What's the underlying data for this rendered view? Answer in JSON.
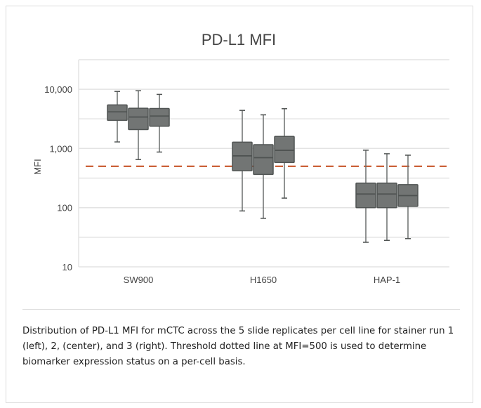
{
  "chart_data": {
    "type": "box",
    "title": "PD-L1 MFI",
    "xlabel": "",
    "ylabel": "MFI",
    "yscale": "log",
    "ylim": [
      10,
      31623
    ],
    "yticks": [
      10,
      100,
      1000,
      10000
    ],
    "ytick_labels": [
      "10",
      "100",
      "1,000",
      "10,000"
    ],
    "categories": [
      "SW900",
      "H1650",
      "HAP-1"
    ],
    "series": [
      {
        "name": "Stainer run 1",
        "boxes": [
          {
            "whislo": 1290,
            "q1": 2990,
            "med": 4160,
            "q3": 5450,
            "whishi": 9200
          },
          {
            "whislo": 88,
            "q1": 420,
            "med": 750,
            "q3": 1280,
            "whishi": 4400
          },
          {
            "whislo": 26,
            "q1": 100,
            "med": 170,
            "q3": 260,
            "whishi": 935
          }
        ]
      },
      {
        "name": "Stainer run 2",
        "boxes": [
          {
            "whislo": 650,
            "q1": 2090,
            "med": 3400,
            "q3": 4780,
            "whishi": 9450
          },
          {
            "whislo": 66,
            "q1": 365,
            "med": 700,
            "q3": 1160,
            "whishi": 3700
          },
          {
            "whislo": 28,
            "q1": 100,
            "med": 170,
            "q3": 260,
            "whishi": 815
          }
        ]
      },
      {
        "name": "Stainer run 3",
        "boxes": [
          {
            "whislo": 870,
            "q1": 2380,
            "med": 3530,
            "q3": 4740,
            "whishi": 8200
          },
          {
            "whislo": 145,
            "q1": 580,
            "med": 930,
            "q3": 1600,
            "whishi": 4700
          },
          {
            "whislo": 30,
            "q1": 105,
            "med": 160,
            "q3": 245,
            "whishi": 770
          }
        ]
      }
    ],
    "threshold": {
      "value": 500,
      "style": "dashed"
    },
    "grid": true,
    "colors": {
      "box": "#727574",
      "box_edge": "#4f5352",
      "threshold": "#c8562a",
      "grid": "#e3e3e3"
    }
  },
  "caption": "Distribution of PD-L1 MFI for mCTC across the 5 slide replicates per cell line for stainer run 1 (left), 2, (center), and 3 (right). Threshold dotted line at MFI=500 is used to determine biomarker expression status on a per-cell basis."
}
